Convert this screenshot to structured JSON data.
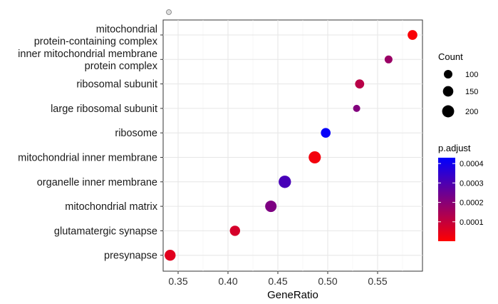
{
  "chart_data": {
    "type": "scatter",
    "title": "",
    "xlabel": "GeneRatio",
    "ylabel": "",
    "xlim": [
      0.335,
      0.595
    ],
    "xticks": [
      0.35,
      0.4,
      0.45,
      0.5,
      0.55
    ],
    "xtick_labels": [
      "0.35",
      "0.40",
      "0.45",
      "0.50",
      "0.55"
    ],
    "grid": true,
    "categories": [
      "mitochondrial\nprotein-containing complex",
      "inner mitochondrial membrane\nprotein complex",
      "ribosomal subunit",
      "large ribosomal subunit",
      "ribosome",
      "mitochondrial inner membrane",
      "organelle inner membrane",
      "mitochondrial matrix",
      "glutamatergic synapse",
      "presynapse"
    ],
    "points": [
      {
        "category": "mitochondrial\nprotein-containing complex",
        "gene_ratio": 0.585,
        "count": 130,
        "p_adjust": 1e-05
      },
      {
        "category": "inner mitochondrial membrane\nprotein complex",
        "gene_ratio": 0.561,
        "count": 85,
        "p_adjust": 0.00017
      },
      {
        "category": "ribosomal subunit",
        "gene_ratio": 0.532,
        "count": 115,
        "p_adjust": 0.00012
      },
      {
        "category": "large ribosomal subunit",
        "gene_ratio": 0.529,
        "count": 70,
        "p_adjust": 0.00021
      },
      {
        "category": "ribosome",
        "gene_ratio": 0.498,
        "count": 130,
        "p_adjust": 0.00042
      },
      {
        "category": "mitochondrial inner membrane",
        "gene_ratio": 0.487,
        "count": 205,
        "p_adjust": 2e-05
      },
      {
        "category": "organelle inner membrane",
        "gene_ratio": 0.457,
        "count": 210,
        "p_adjust": 0.00031
      },
      {
        "category": "mitochondrial matrix",
        "gene_ratio": 0.443,
        "count": 180,
        "p_adjust": 0.00022
      },
      {
        "category": "glutamatergic synapse",
        "gene_ratio": 0.407,
        "count": 145,
        "p_adjust": 7e-05
      },
      {
        "category": "presynapse",
        "gene_ratio": 0.342,
        "count": 165,
        "p_adjust": 5e-05
      }
    ],
    "size_legend": {
      "title": "Count",
      "entries": [
        {
          "label": "100",
          "value": 100
        },
        {
          "label": "150",
          "value": 150
        },
        {
          "label": "200",
          "value": 200
        }
      ]
    },
    "color_legend": {
      "title": "p.adjust",
      "range": [
        0.0,
        0.00043
      ],
      "low_color": "#ff0000",
      "high_color": "#0000ff",
      "ticks": [
        {
          "label": "0.0004",
          "value": 0.0004
        },
        {
          "label": "0.0003",
          "value": 0.0003
        },
        {
          "label": "0.0002",
          "value": 0.0002
        },
        {
          "label": "0.0001",
          "value": 0.0001
        }
      ]
    },
    "legend_position": "right"
  }
}
